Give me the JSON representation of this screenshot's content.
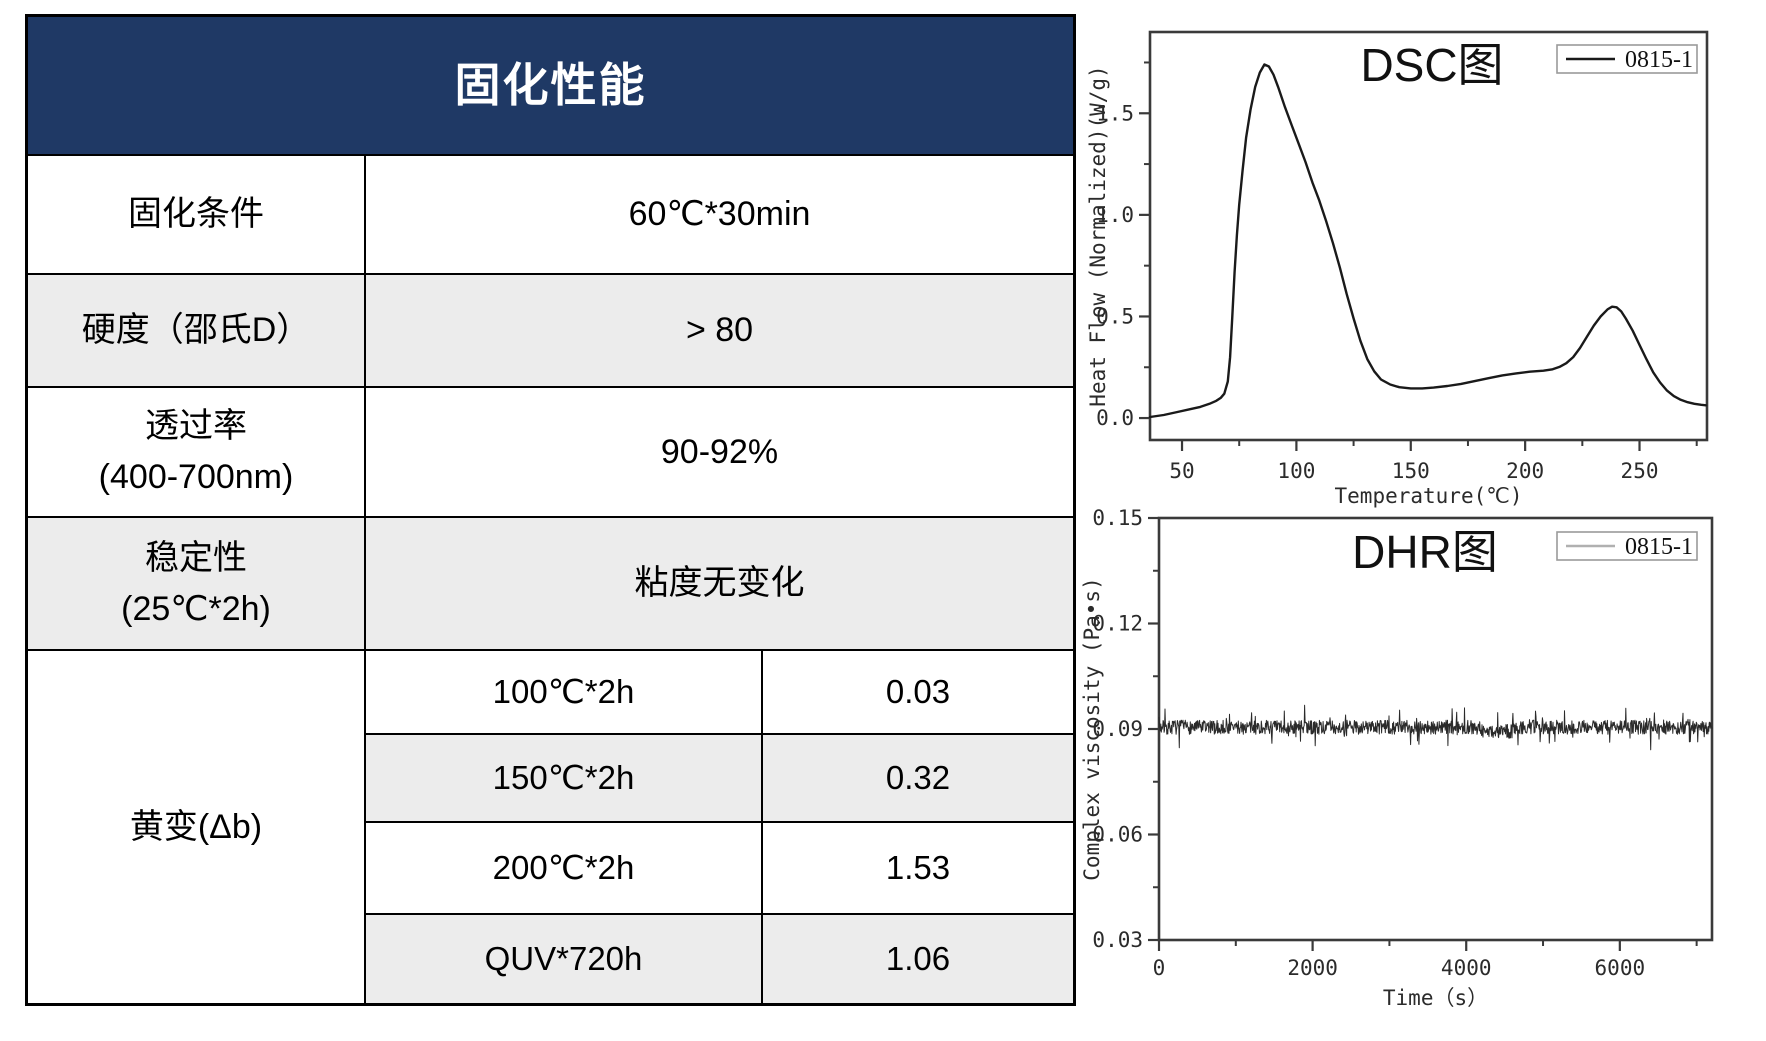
{
  "colors": {
    "header_bg": "#1F3965",
    "row_alt": "#ECECEC",
    "table_border": "#000000",
    "axis": "#3A3A3A",
    "dsc_line": "#1A1A1A",
    "dhr_line": "#2A2A2A",
    "dhr_legend_line": "#B0B0B0"
  },
  "table": {
    "header": "固化性能",
    "rows": [
      {
        "l1": "固化条件",
        "l2": "",
        "value": "60℃*30min"
      },
      {
        "l1": "硬度（邵氏D）",
        "l2": "",
        "value": "> 80"
      },
      {
        "l1": "透过率",
        "l2": "(400-700nm)",
        "value": "90-92%"
      },
      {
        "l1": "稳定性",
        "l2": "(25℃*2h)",
        "value": "粘度无变化"
      }
    ],
    "yellowing": {
      "label": "黄变(Δb)",
      "entries": [
        {
          "cond": "100℃*2h",
          "value": "0.03"
        },
        {
          "cond": "150℃*2h",
          "value": "0.32"
        },
        {
          "cond": "200℃*2h",
          "value": "1.53"
        },
        {
          "cond": "QUV*720h",
          "value": "1.06"
        }
      ]
    }
  },
  "chart_data": [
    {
      "id": "dsc",
      "type": "line",
      "title": "DSC图",
      "xlabel": "Temperature(℃)",
      "ylabel": "Heat Flow (Normalized)(W/g)",
      "legend": {
        "label": "0815-1",
        "line_color": "#1A1A1A",
        "position": "top-right"
      },
      "xlim": [
        36,
        279.5
      ],
      "ylim": [
        -0.108,
        1.9
      ],
      "grid": false,
      "xticks": {
        "major": [
          50,
          100,
          150,
          200,
          250
        ],
        "labels": [
          "50",
          "100",
          "150",
          "200",
          "250"
        ],
        "minor": [
          75,
          125,
          175,
          225,
          275
        ]
      },
      "yticks": {
        "major": [
          0.0,
          0.5,
          1.0,
          1.5
        ],
        "labels": [
          "0.0",
          "0.5",
          "1.0",
          "1.5"
        ],
        "minor": [
          0.25,
          0.75,
          1.25,
          1.75
        ]
      },
      "series": [
        {
          "name": "0815-1",
          "points": [
            [
              36,
              0.005
            ],
            [
              42,
              0.015
            ],
            [
              48,
              0.03
            ],
            [
              54,
              0.045
            ],
            [
              58,
              0.055
            ],
            [
              62,
              0.07
            ],
            [
              65,
              0.085
            ],
            [
              67,
              0.1
            ],
            [
              68.5,
              0.12
            ],
            [
              70,
              0.18
            ],
            [
              71,
              0.3
            ],
            [
              72,
              0.5
            ],
            [
              73,
              0.72
            ],
            [
              74,
              0.9
            ],
            [
              75,
              1.05
            ],
            [
              76.5,
              1.22
            ],
            [
              78,
              1.38
            ],
            [
              80,
              1.52
            ],
            [
              82,
              1.63
            ],
            [
              84,
              1.7
            ],
            [
              86,
              1.74
            ],
            [
              88,
              1.73
            ],
            [
              90,
              1.69
            ],
            [
              92,
              1.63
            ],
            [
              95,
              1.53
            ],
            [
              98,
              1.44
            ],
            [
              101,
              1.35
            ],
            [
              104,
              1.26
            ],
            [
              107,
              1.16
            ],
            [
              110,
              1.07
            ],
            [
              113,
              0.97
            ],
            [
              116,
              0.86
            ],
            [
              119,
              0.74
            ],
            [
              122,
              0.61
            ],
            [
              125,
              0.49
            ],
            [
              128,
              0.38
            ],
            [
              131,
              0.29
            ],
            [
              134,
              0.23
            ],
            [
              137,
              0.19
            ],
            [
              141,
              0.165
            ],
            [
              145,
              0.152
            ],
            [
              150,
              0.146
            ],
            [
              155,
              0.146
            ],
            [
              160,
              0.15
            ],
            [
              166,
              0.158
            ],
            [
              172,
              0.168
            ],
            [
              178,
              0.182
            ],
            [
              184,
              0.196
            ],
            [
              190,
              0.21
            ],
            [
              196,
              0.22
            ],
            [
              202,
              0.228
            ],
            [
              208,
              0.233
            ],
            [
              212,
              0.24
            ],
            [
              215,
              0.252
            ],
            [
              218,
              0.27
            ],
            [
              221,
              0.3
            ],
            [
              224,
              0.345
            ],
            [
              227,
              0.4
            ],
            [
              230,
              0.455
            ],
            [
              233,
              0.5
            ],
            [
              236,
              0.535
            ],
            [
              238,
              0.548
            ],
            [
              240,
              0.545
            ],
            [
              242,
              0.525
            ],
            [
              244,
              0.49
            ],
            [
              247,
              0.43
            ],
            [
              250,
              0.36
            ],
            [
              253,
              0.29
            ],
            [
              256,
              0.225
            ],
            [
              259,
              0.175
            ],
            [
              262,
              0.135
            ],
            [
              265,
              0.108
            ],
            [
              268,
              0.09
            ],
            [
              271,
              0.078
            ],
            [
              274,
              0.07
            ],
            [
              277,
              0.065
            ],
            [
              279,
              0.063
            ]
          ]
        }
      ],
      "annotations": {
        "peak1": {
          "temp": 86,
          "value": 1.74
        },
        "peak2": {
          "temp": 238,
          "value": 0.55
        },
        "valley": {
          "temp": 152,
          "value": 0.146
        }
      }
    },
    {
      "id": "dhr",
      "type": "line",
      "title": "DHR图",
      "xlabel": "Time（s）",
      "ylabel": "Complex viscosity (Pa•s)",
      "legend": {
        "label": "0815-1",
        "line_color": "#B0B0B0",
        "position": "top-right"
      },
      "xlim": [
        0,
        7200
      ],
      "ylim": [
        0.03,
        0.15
      ],
      "grid": false,
      "xticks": {
        "major": [
          0,
          2000,
          4000,
          6000
        ],
        "labels": [
          "0",
          "2000",
          "4000",
          "6000"
        ],
        "minor": [
          1000,
          3000,
          5000,
          7000
        ]
      },
      "yticks": {
        "major": [
          0.03,
          0.06,
          0.09,
          0.12,
          0.15
        ],
        "labels": [
          "0.03",
          "0.06",
          "0.09",
          "0.12",
          "0.15"
        ],
        "minor": [
          0.045,
          0.075,
          0.105,
          0.135
        ]
      },
      "series": [
        {
          "name": "0815-1",
          "noise": {
            "baseline": 0.0905,
            "amplitude": 0.002,
            "spike_chance": 0.08,
            "spike_amplitude": 0.005,
            "n_points": 1200,
            "seed": 7,
            "dip": {
              "range": [
                4200,
                4600
              ],
              "offset": -0.0012
            }
          }
        }
      ]
    }
  ]
}
